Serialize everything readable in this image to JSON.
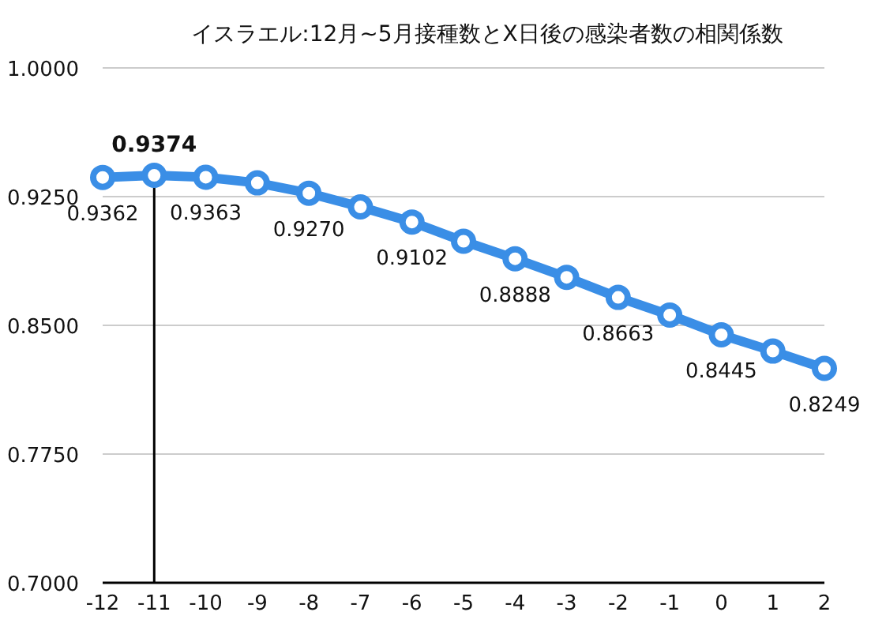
{
  "chart_data": {
    "type": "line",
    "title": "イスラエル:12月~5月接種数とX日後の感染者数の相関係数",
    "x": [
      -12,
      -11,
      -10,
      -9,
      -8,
      -7,
      -6,
      -5,
      -4,
      -3,
      -2,
      -1,
      0,
      1,
      2
    ],
    "series": [
      {
        "color": "#3a8ee6",
        "values": [
          0.9362,
          0.9374,
          0.9363,
          0.933,
          0.927,
          0.919,
          0.9102,
          0.899,
          0.8888,
          0.878,
          0.8663,
          0.856,
          0.8445,
          0.835,
          0.8249
        ],
        "value_labels": [
          "0.9362",
          "0.9374",
          "0.9363",
          null,
          "0.9270",
          null,
          "0.9102",
          null,
          "0.8888",
          null,
          "0.8663",
          null,
          "0.8445",
          null,
          "0.8249"
        ]
      }
    ],
    "xlim": [
      -12,
      2
    ],
    "xticks": [
      -12,
      -11,
      -10,
      -9,
      -8,
      -7,
      -6,
      -5,
      -4,
      -3,
      -2,
      -1,
      0,
      1,
      2
    ],
    "ylim": [
      0.7,
      1.0
    ],
    "yticks": [
      {
        "value": 0.7,
        "label": "0.7000"
      },
      {
        "value": 0.775,
        "label": "0.7750"
      },
      {
        "value": 0.85,
        "label": "0.8500"
      },
      {
        "value": 0.925,
        "label": "0.9250"
      },
      {
        "value": 1.0,
        "label": "1.0000"
      }
    ],
    "ref_lines": [
      {
        "axis": "x",
        "value": -11,
        "color": "#000000"
      }
    ],
    "grid": "y",
    "marker": "circle",
    "line_style": "solid"
  }
}
